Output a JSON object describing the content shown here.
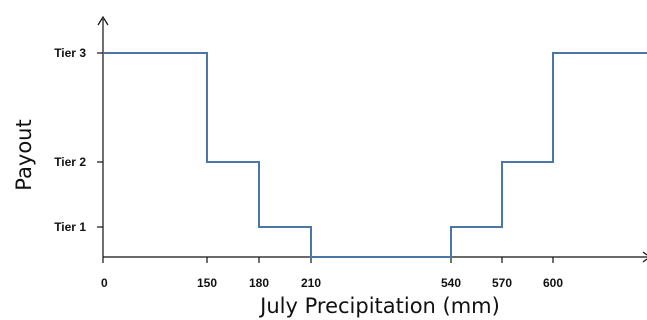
{
  "chart_data": {
    "type": "line",
    "title": "",
    "xlabel": "July Precipitation (mm)",
    "ylabel": "Payout",
    "x_ticks": [
      {
        "value": 0,
        "label": "0"
      },
      {
        "value": 150,
        "label": "150"
      },
      {
        "value": 180,
        "label": "180"
      },
      {
        "value": 210,
        "label": "210"
      },
      {
        "value": 540,
        "label": "540"
      },
      {
        "value": 570,
        "label": "570"
      },
      {
        "value": 600,
        "label": "600"
      }
    ],
    "y_ticks": [
      {
        "value": 1,
        "label": "Tier 1"
      },
      {
        "value": 2,
        "label": "Tier 2"
      },
      {
        "value": 3,
        "label": "Tier 3"
      }
    ],
    "series": [
      {
        "step": "post",
        "x": [
          0,
          150,
          180,
          210,
          540,
          570,
          600,
          750
        ],
        "y": [
          3,
          2,
          1,
          0,
          1,
          2,
          3,
          3
        ]
      }
    ],
    "line_color": "#4a76a8",
    "axis_color": "#111111",
    "grid": false
  }
}
